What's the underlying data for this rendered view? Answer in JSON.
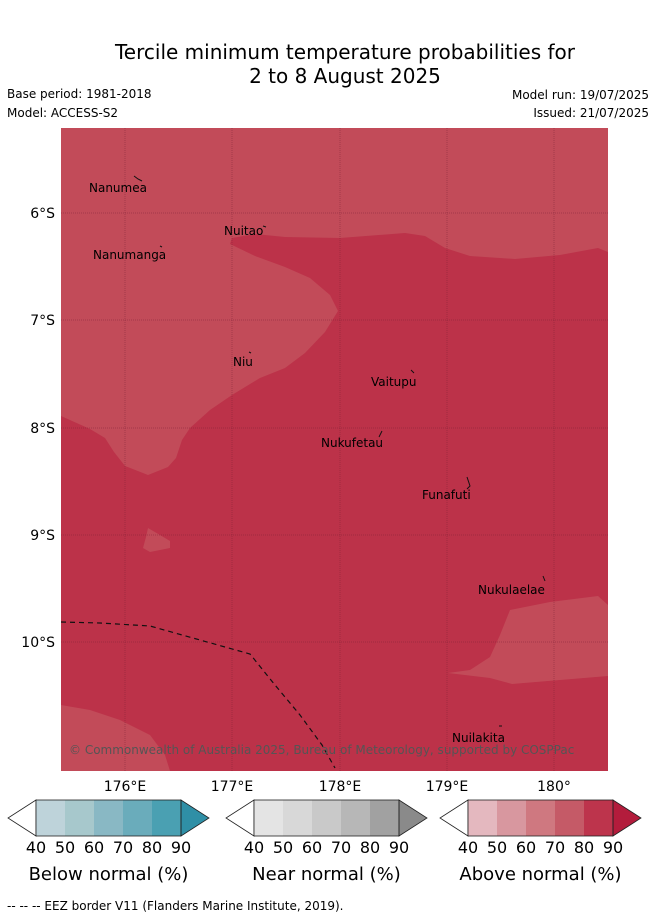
{
  "title_line1": "Tercile minimum temperature probabilities for",
  "title_line2": "2 to 8 August 2025",
  "base_period": "Base period: 1981-2018",
  "model": "Model: ACCESS-S2",
  "model_run": "Model run: 19/07/2025",
  "issued": "Issued: 21/07/2025",
  "lon_ticks": [
    "176°E",
    "177°E",
    "178°E",
    "179°E",
    "180°"
  ],
  "lat_ticks": [
    "6°S",
    "7°S",
    "8°S",
    "9°S",
    "10°S"
  ],
  "places": {
    "nanumea": "Nanumea",
    "nuitao": "Nuitao",
    "nanumanga": "Nanumanga",
    "niu": "Niu",
    "vaitupu": "Vaitupu",
    "nukufetau": "Nukufetau",
    "funafuti": "Funafuti",
    "nukulaelae": "Nukulaelae",
    "nuilakita": "Nuilakita"
  },
  "credit": "© Commonwealth of Australia 2025, Bureau of Meteorology, supported by COSPPac",
  "colorbars": [
    {
      "label": "Below normal (%)",
      "ticks": [
        "40",
        "50",
        "60",
        "70",
        "80",
        "90"
      ],
      "colors": [
        "#bed3da",
        "#a7c8cc",
        "#89b8c4",
        "#6aacbb",
        "#4aa0b2",
        "#2f8fa6"
      ]
    },
    {
      "label": "Near normal (%)",
      "ticks": [
        "40",
        "50",
        "60",
        "70",
        "80",
        "90"
      ],
      "colors": [
        "#e4e4e4",
        "#d8d8d8",
        "#c9c9c9",
        "#b7b7b7",
        "#a1a1a1",
        "#8a8a8a"
      ]
    },
    {
      "label": "Above normal (%)",
      "ticks": [
        "40",
        "50",
        "60",
        "70",
        "80",
        "90"
      ],
      "colors": [
        "#e4b8bf",
        "#d8979f",
        "#cf7880",
        "#c55a67",
        "#bd344c",
        "#b31c3c"
      ]
    }
  ],
  "footer": "--  --  -- EEZ border V11 (Flanders Marine Institute, 2019).",
  "map_colors": {
    "level_70_80": "#c24b59",
    "level_80_90": "#bc3249"
  }
}
